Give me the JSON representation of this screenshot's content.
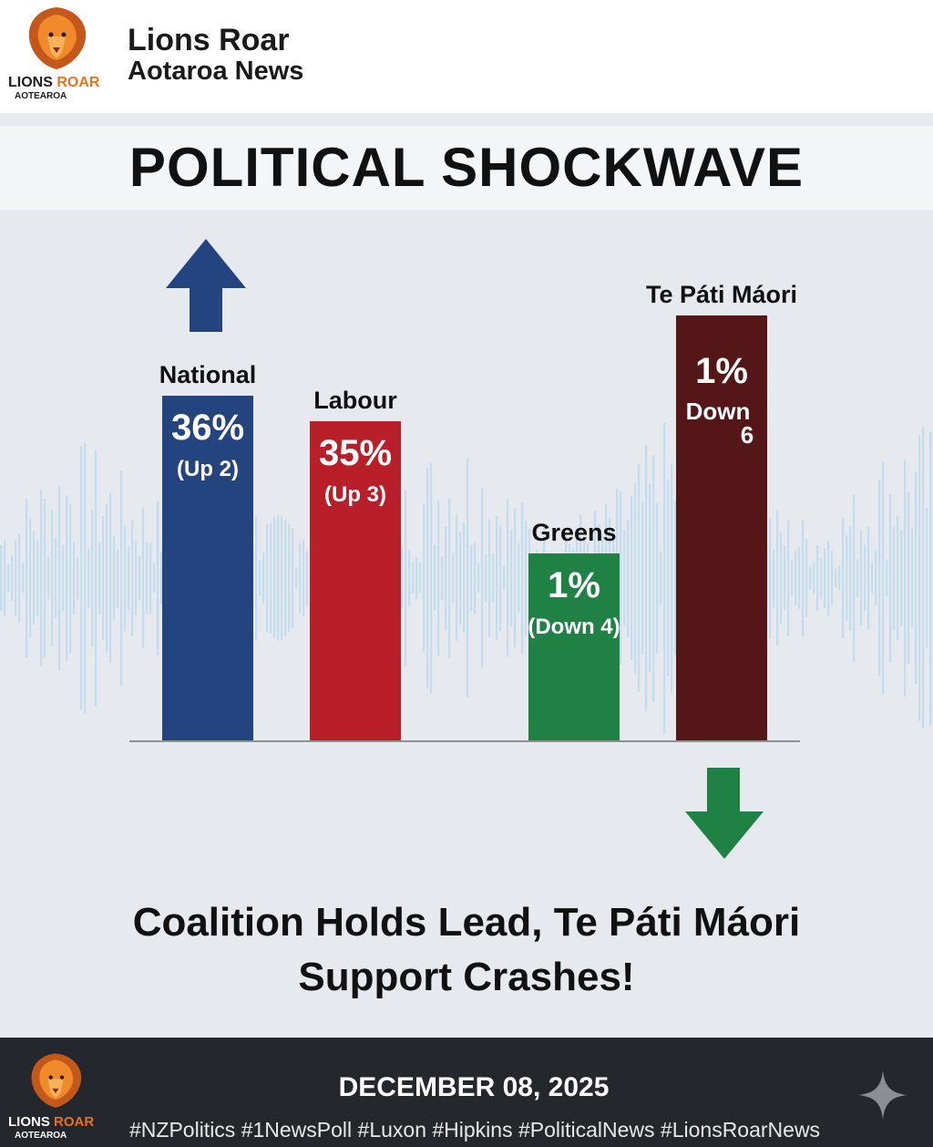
{
  "brand": {
    "logo_word1": "LIONS",
    "logo_word2": "ROAR",
    "logo_sub": "AOTEAROA",
    "name": "Lions Roar",
    "sub": "Aotaroa News"
  },
  "title": "POLITICAL SHOCKWAVE",
  "headline_line1": "Coalition Holds Lead, Te Páti Máori",
  "headline_line2": "Support Crashes!",
  "footer": {
    "date": "DECEMBER 08, 2025",
    "hashtags": "#NZPolitics #1NewsPoll #Luxon #Hipkins #PoliticalNews #LionsRoarNews"
  },
  "colors": {
    "national": "#24447f",
    "labour": "#b91f28",
    "greens": "#1f8244",
    "maori": "#541616",
    "arrow_up": "#24447f",
    "arrow_down": "#1f8244",
    "logo_orange": "#e8731c"
  },
  "icons": [
    "lion-logo-icon",
    "arrow-up-icon",
    "arrow-down-icon",
    "sparkle-icon"
  ],
  "chart_data": {
    "type": "bar",
    "categories": [
      "National",
      "Labour",
      "Greens",
      "Te Páti Máori"
    ],
    "values": [
      36,
      35,
      1,
      1
    ],
    "value_labels": [
      "36%",
      "35%",
      "1%",
      "1%"
    ],
    "change_labels": [
      "(Up 2)",
      "(Up 3)",
      "(Down 4)",
      "Down 6"
    ],
    "title": "POLITICAL SHOCKWAVE",
    "xlabel": "",
    "ylabel": "",
    "grid": false,
    "legend": "none"
  }
}
